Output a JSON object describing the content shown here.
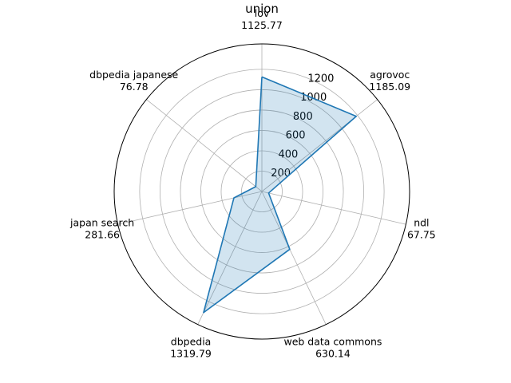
{
  "chart_data": {
    "type": "radar",
    "title": "union",
    "categories": [
      "lov",
      "agrovoc",
      "ndl",
      "web data commons",
      "dbpedia",
      "japan search",
      "dbpedia japanese"
    ],
    "value_labels": [
      "1125.77",
      "1185.09",
      "67.75",
      "630.14",
      "1319.79",
      "281.66",
      "76.78"
    ],
    "series": [
      {
        "values": [
          1125.77,
          1185.09,
          67.75,
          630.14,
          1319.79,
          281.66,
          76.78
        ]
      }
    ],
    "radial_ticks": [
      "200",
      "400",
      "600",
      "800",
      "1000",
      "1200"
    ],
    "rlim": [
      0,
      1450
    ],
    "grid": true,
    "line_color": "#1f77b4",
    "fill_color": "#1f77b4"
  }
}
